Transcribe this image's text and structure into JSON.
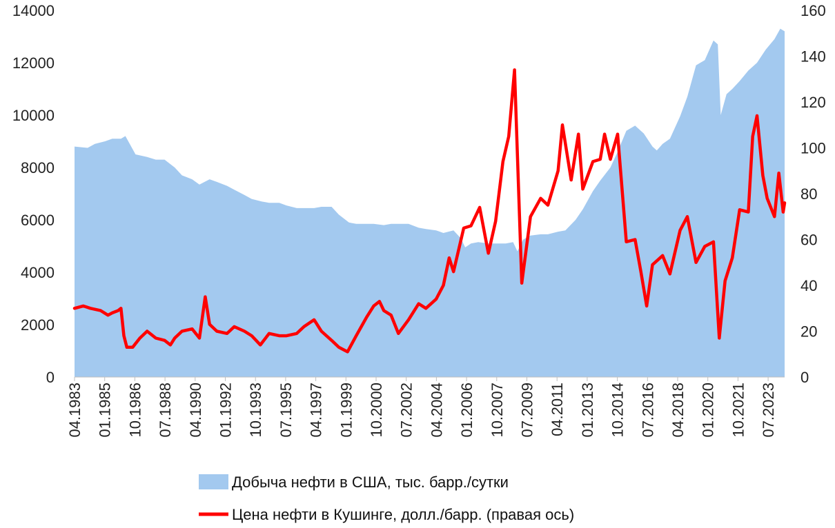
{
  "chart_data": {
    "type": "area",
    "x_tick_labels": [
      "04.1983",
      "01.1985",
      "10.1986",
      "07.1988",
      "04.1990",
      "01.1992",
      "10.1993",
      "07.1995",
      "04.1997",
      "01.1999",
      "10.2000",
      "07.2002",
      "04.2004",
      "01.2006",
      "10.2007",
      "07.2009",
      "04.2011",
      "01.2013",
      "10.2014",
      "07.2016",
      "04.2018",
      "01.2020",
      "10.2021",
      "07.2023"
    ],
    "x_range": [
      "1983-04",
      "2024-01"
    ],
    "y_left": {
      "min": 0,
      "max": 14000,
      "step": 2000,
      "ticks": [
        "0",
        "2000",
        "4000",
        "6000",
        "8000",
        "10000",
        "12000",
        "14000"
      ]
    },
    "y_right": {
      "min": 0,
      "max": 160,
      "step": 20,
      "ticks": [
        "0",
        "20",
        "40",
        "60",
        "80",
        "100",
        "120",
        "140",
        "160"
      ]
    },
    "grid": false,
    "legend_position": "bottom",
    "series": [
      {
        "name": "Добыча нефти в США, тыс. барр./сутки",
        "kind": "area",
        "axis": "left",
        "color": "#a3c9ef",
        "points": [
          [
            "1983-04",
            8800
          ],
          [
            "1984-01",
            8750
          ],
          [
            "1984-06",
            8900
          ],
          [
            "1985-01",
            9000
          ],
          [
            "1985-06",
            9100
          ],
          [
            "1985-12",
            9100
          ],
          [
            "1986-03",
            9200
          ],
          [
            "1986-06",
            8900
          ],
          [
            "1986-10",
            8500
          ],
          [
            "1987-06",
            8400
          ],
          [
            "1987-12",
            8300
          ],
          [
            "1988-06",
            8300
          ],
          [
            "1989-01",
            8000
          ],
          [
            "1989-06",
            7700
          ],
          [
            "1990-01",
            7550
          ],
          [
            "1990-06",
            7350
          ],
          [
            "1991-01",
            7550
          ],
          [
            "1991-06",
            7450
          ],
          [
            "1992-01",
            7300
          ],
          [
            "1992-06",
            7150
          ],
          [
            "1993-01",
            6950
          ],
          [
            "1993-06",
            6800
          ],
          [
            "1994-01",
            6700
          ],
          [
            "1994-06",
            6650
          ],
          [
            "1995-01",
            6650
          ],
          [
            "1995-06",
            6550
          ],
          [
            "1996-01",
            6450
          ],
          [
            "1996-06",
            6450
          ],
          [
            "1997-01",
            6450
          ],
          [
            "1997-06",
            6500
          ],
          [
            "1998-01",
            6500
          ],
          [
            "1998-06",
            6200
          ],
          [
            "1999-01",
            5900
          ],
          [
            "1999-06",
            5850
          ],
          [
            "2000-01",
            5850
          ],
          [
            "2000-06",
            5850
          ],
          [
            "2001-01",
            5800
          ],
          [
            "2001-06",
            5850
          ],
          [
            "2002-01",
            5850
          ],
          [
            "2002-06",
            5850
          ],
          [
            "2003-01",
            5700
          ],
          [
            "2003-06",
            5650
          ],
          [
            "2004-01",
            5600
          ],
          [
            "2004-06",
            5500
          ],
          [
            "2005-01",
            5600
          ],
          [
            "2005-06",
            5300
          ],
          [
            "2005-09",
            4950
          ],
          [
            "2006-01",
            5100
          ],
          [
            "2006-06",
            5150
          ],
          [
            "2007-01",
            5100
          ],
          [
            "2007-06",
            5100
          ],
          [
            "2008-01",
            5100
          ],
          [
            "2008-06",
            5150
          ],
          [
            "2008-09",
            4800
          ],
          [
            "2009-01",
            5250
          ],
          [
            "2009-06",
            5400
          ],
          [
            "2010-01",
            5450
          ],
          [
            "2010-06",
            5450
          ],
          [
            "2011-01",
            5550
          ],
          [
            "2011-06",
            5600
          ],
          [
            "2012-01",
            6000
          ],
          [
            "2012-06",
            6400
          ],
          [
            "2013-01",
            7100
          ],
          [
            "2013-06",
            7500
          ],
          [
            "2014-01",
            8000
          ],
          [
            "2014-06",
            8600
          ],
          [
            "2014-12",
            9400
          ],
          [
            "2015-06",
            9600
          ],
          [
            "2015-12",
            9300
          ],
          [
            "2016-06",
            8800
          ],
          [
            "2016-09",
            8650
          ],
          [
            "2017-01",
            8900
          ],
          [
            "2017-06",
            9100
          ],
          [
            "2018-01",
            9950
          ],
          [
            "2018-06",
            10700
          ],
          [
            "2018-12",
            11900
          ],
          [
            "2019-06",
            12100
          ],
          [
            "2019-12",
            12850
          ],
          [
            "2020-03",
            12700
          ],
          [
            "2020-05",
            10000
          ],
          [
            "2020-09",
            10800
          ],
          [
            "2021-01",
            11000
          ],
          [
            "2021-06",
            11300
          ],
          [
            "2021-12",
            11700
          ],
          [
            "2022-06",
            12000
          ],
          [
            "2022-12",
            12500
          ],
          [
            "2023-06",
            12900
          ],
          [
            "2023-10",
            13300
          ],
          [
            "2024-01",
            13200
          ]
        ]
      },
      {
        "name": "Цена нефти в Кушинге, долл./барр. (правая ось)",
        "kind": "line",
        "axis": "right",
        "color": "#ff0000",
        "points": [
          [
            "1983-04",
            30
          ],
          [
            "1983-10",
            31
          ],
          [
            "1984-03",
            30
          ],
          [
            "1984-10",
            29
          ],
          [
            "1985-03",
            27
          ],
          [
            "1985-06",
            28
          ],
          [
            "1985-10",
            29
          ],
          [
            "1985-12",
            30
          ],
          [
            "1986-02",
            18
          ],
          [
            "1986-04",
            13
          ],
          [
            "1986-08",
            13
          ],
          [
            "1987-01",
            17
          ],
          [
            "1987-06",
            20
          ],
          [
            "1987-12",
            17
          ],
          [
            "1988-06",
            16
          ],
          [
            "1988-10",
            14
          ],
          [
            "1989-01",
            17
          ],
          [
            "1989-06",
            20
          ],
          [
            "1990-01",
            21
          ],
          [
            "1990-06",
            17
          ],
          [
            "1990-10",
            35
          ],
          [
            "1991-01",
            23
          ],
          [
            "1991-06",
            20
          ],
          [
            "1992-01",
            19
          ],
          [
            "1992-06",
            22
          ],
          [
            "1993-01",
            20
          ],
          [
            "1993-06",
            18
          ],
          [
            "1993-12",
            14
          ],
          [
            "1994-06",
            19
          ],
          [
            "1995-01",
            18
          ],
          [
            "1995-06",
            18
          ],
          [
            "1996-01",
            19
          ],
          [
            "1996-06",
            22
          ],
          [
            "1997-01",
            25
          ],
          [
            "1997-06",
            20
          ],
          [
            "1998-01",
            16
          ],
          [
            "1998-06",
            13
          ],
          [
            "1998-12",
            11
          ],
          [
            "1999-06",
            18
          ],
          [
            "2000-01",
            26
          ],
          [
            "2000-06",
            31
          ],
          [
            "2000-10",
            33
          ],
          [
            "2001-01",
            29
          ],
          [
            "2001-06",
            27
          ],
          [
            "2001-11",
            19
          ],
          [
            "2002-06",
            25
          ],
          [
            "2003-01",
            32
          ],
          [
            "2003-06",
            30
          ],
          [
            "2004-01",
            34
          ],
          [
            "2004-06",
            40
          ],
          [
            "2004-10",
            52
          ],
          [
            "2005-01",
            46
          ],
          [
            "2005-08",
            65
          ],
          [
            "2006-01",
            66
          ],
          [
            "2006-07",
            74
          ],
          [
            "2007-01",
            54
          ],
          [
            "2007-06",
            68
          ],
          [
            "2007-11",
            94
          ],
          [
            "2008-03",
            105
          ],
          [
            "2008-07",
            134
          ],
          [
            "2008-12",
            41
          ],
          [
            "2009-06",
            70
          ],
          [
            "2010-01",
            78
          ],
          [
            "2010-06",
            75
          ],
          [
            "2011-01",
            90
          ],
          [
            "2011-04",
            110
          ],
          [
            "2011-10",
            86
          ],
          [
            "2012-03",
            106
          ],
          [
            "2012-06",
            82
          ],
          [
            "2013-01",
            94
          ],
          [
            "2013-06",
            95
          ],
          [
            "2013-09",
            106
          ],
          [
            "2014-01",
            95
          ],
          [
            "2014-06",
            106
          ],
          [
            "2014-12",
            59
          ],
          [
            "2015-06",
            60
          ],
          [
            "2015-10",
            46
          ],
          [
            "2016-02",
            31
          ],
          [
            "2016-06",
            49
          ],
          [
            "2017-01",
            53
          ],
          [
            "2017-06",
            45
          ],
          [
            "2018-01",
            64
          ],
          [
            "2018-06",
            70
          ],
          [
            "2018-12",
            50
          ],
          [
            "2019-06",
            57
          ],
          [
            "2019-12",
            59
          ],
          [
            "2020-04",
            17
          ],
          [
            "2020-08",
            42
          ],
          [
            "2021-01",
            52
          ],
          [
            "2021-06",
            73
          ],
          [
            "2021-12",
            72
          ],
          [
            "2022-03",
            105
          ],
          [
            "2022-06",
            114
          ],
          [
            "2022-10",
            88
          ],
          [
            "2023-01",
            78
          ],
          [
            "2023-06",
            70
          ],
          [
            "2023-09",
            89
          ],
          [
            "2023-12",
            72
          ],
          [
            "2024-01",
            76
          ]
        ]
      }
    ]
  }
}
